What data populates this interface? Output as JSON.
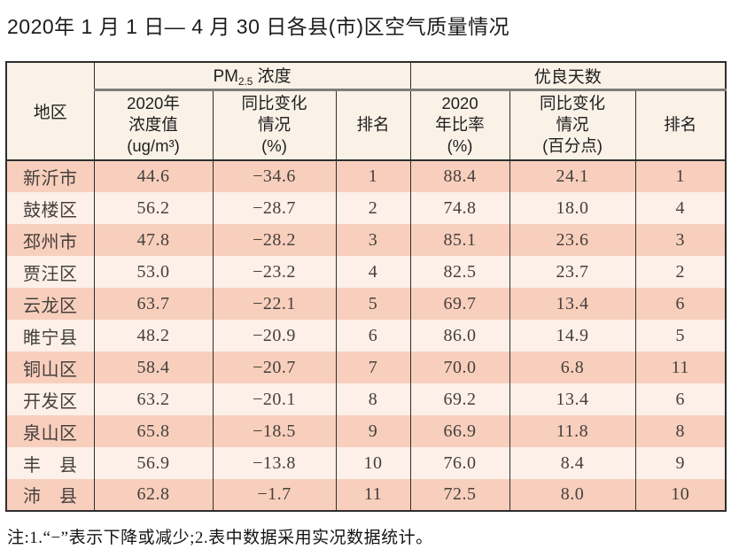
{
  "page": {
    "title": "2020年 1 月 1 日— 4 月 30 日各县(市)区空气质量情况",
    "footnote": "注:1.“−”表示下降或减少;2.表中数据采用实况数据统计。"
  },
  "colors": {
    "row_dark": "#f8cfbd",
    "row_light": "#fcf0e9",
    "header_bg": "#faf1e7",
    "border_dark": "#2e2e2e",
    "border_gray": "#7d7d7d"
  },
  "table": {
    "header": {
      "region": "地区",
      "pm_group_prefix": "PM",
      "pm_group_sub": "2.5",
      "pm_group_suffix": " 浓度",
      "good_group": "优良天数",
      "col_pm_value": "2020年\n浓度值\n(ug/m³)",
      "col_pm_change": "同比变化\n情况\n(%)",
      "col_pm_rank": "排名",
      "col_ratio": "2020\n年比率\n(%)",
      "col_ratio_change": "同比变化\n情况\n(百分点)",
      "col_ratio_rank": "排名"
    },
    "row_keys": [
      "region",
      "pm_value",
      "pm_change",
      "pm_rank",
      "ratio",
      "ratio_change",
      "ratio_rank"
    ],
    "rows": [
      {
        "region": "新沂市",
        "pm_value": "44.6",
        "pm_change": "−34.6",
        "pm_rank": "1",
        "ratio": "88.4",
        "ratio_change": "24.1",
        "ratio_rank": "1"
      },
      {
        "region": "鼓楼区",
        "pm_value": "56.2",
        "pm_change": "−28.7",
        "pm_rank": "2",
        "ratio": "74.8",
        "ratio_change": "18.0",
        "ratio_rank": "4"
      },
      {
        "region": "邳州市",
        "pm_value": "47.8",
        "pm_change": "−28.2",
        "pm_rank": "3",
        "ratio": "85.1",
        "ratio_change": "23.6",
        "ratio_rank": "3"
      },
      {
        "region": "贾汪区",
        "pm_value": "53.0",
        "pm_change": "−23.2",
        "pm_rank": "4",
        "ratio": "82.5",
        "ratio_change": "23.7",
        "ratio_rank": "2"
      },
      {
        "region": "云龙区",
        "pm_value": "63.7",
        "pm_change": "−22.1",
        "pm_rank": "5",
        "ratio": "69.7",
        "ratio_change": "13.4",
        "ratio_rank": "6"
      },
      {
        "region": "睢宁县",
        "pm_value": "48.2",
        "pm_change": "−20.9",
        "pm_rank": "6",
        "ratio": "86.0",
        "ratio_change": "14.9",
        "ratio_rank": "5"
      },
      {
        "region": "铜山区",
        "pm_value": "58.4",
        "pm_change": "−20.7",
        "pm_rank": "7",
        "ratio": "70.0",
        "ratio_change": "6.8",
        "ratio_rank": "11"
      },
      {
        "region": "开发区",
        "pm_value": "63.2",
        "pm_change": "−20.1",
        "pm_rank": "8",
        "ratio": "69.2",
        "ratio_change": "13.4",
        "ratio_rank": "6"
      },
      {
        "region": "泉山区",
        "pm_value": "65.8",
        "pm_change": "−18.5",
        "pm_rank": "9",
        "ratio": "66.9",
        "ratio_change": "11.8",
        "ratio_rank": "8"
      },
      {
        "region": "丰　县",
        "pm_value": "56.9",
        "pm_change": "−13.8",
        "pm_rank": "10",
        "ratio": "76.0",
        "ratio_change": "8.4",
        "ratio_rank": "9"
      },
      {
        "region": "沛　县",
        "pm_value": "62.8",
        "pm_change": "−1.7",
        "pm_rank": "11",
        "ratio": "72.5",
        "ratio_change": "8.0",
        "ratio_rank": "10"
      }
    ]
  }
}
